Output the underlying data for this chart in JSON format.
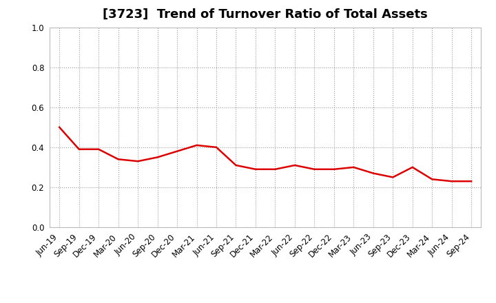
{
  "title": "[3723]  Trend of Turnover Ratio of Total Assets",
  "x_labels": [
    "Jun-19",
    "Sep-19",
    "Dec-19",
    "Mar-20",
    "Jun-20",
    "Sep-20",
    "Dec-20",
    "Mar-21",
    "Jun-21",
    "Sep-21",
    "Dec-21",
    "Mar-22",
    "Jun-22",
    "Sep-22",
    "Dec-22",
    "Mar-23",
    "Jun-23",
    "Sep-23",
    "Dec-23",
    "Mar-24",
    "Jun-24",
    "Sep-24"
  ],
  "y_values": [
    0.5,
    0.39,
    0.39,
    0.34,
    0.33,
    0.35,
    0.38,
    0.41,
    0.4,
    0.31,
    0.29,
    0.29,
    0.31,
    0.29,
    0.29,
    0.3,
    0.27,
    0.25,
    0.3,
    0.24,
    0.23,
    0.23
  ],
  "line_color": "#dd0000",
  "line_width": 1.8,
  "ylim": [
    0.0,
    1.0
  ],
  "yticks": [
    0.0,
    0.2,
    0.4,
    0.6,
    0.8,
    1.0
  ],
  "background_color": "#ffffff",
  "grid_color": "#999999",
  "title_fontsize": 13,
  "tick_fontsize": 8.5
}
